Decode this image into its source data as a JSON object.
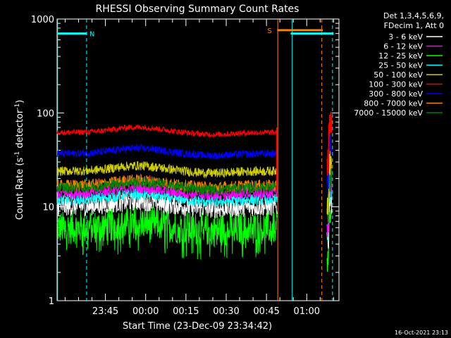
{
  "chart_data": {
    "type": "line",
    "title": "RHESSI Observing Summary Count Rates",
    "xlabel": "Start Time (23-Dec-09 23:34:42)",
    "ylabel": "Count Rate (s",
    "ylabel_sup": "-1",
    "ylabel_tail": " detector",
    "ylabel_close": ")",
    "yscale": "log",
    "ylim": [
      1,
      1000
    ],
    "xlim_minutes": [
      -8,
      97
    ],
    "x_ticks": [
      {
        "label": "23:45",
        "minute": 10
      },
      {
        "label": "00:00",
        "minute": 25
      },
      {
        "label": "00:15",
        "minute": 40
      },
      {
        "label": "00:30",
        "minute": 55
      },
      {
        "label": "00:45",
        "minute": 70
      },
      {
        "label": "01:00",
        "minute": 85
      }
    ],
    "y_ticks": [
      {
        "label": "1",
        "value": 1
      },
      {
        "label": "10",
        "value": 10
      },
      {
        "label": "100",
        "value": 100
      },
      {
        "label": "1000",
        "value": 1000
      }
    ],
    "legend": {
      "header1": "Det 1,3,4,5,6,9,",
      "header2": "FDecim 1, Att 0",
      "placement": "right"
    },
    "series": [
      {
        "name": "3 - 6 keV",
        "color": "#ffffff",
        "level": 10,
        "jitter": 0.1
      },
      {
        "name": "6 - 12 keV",
        "color": "#ff00ff",
        "level": 14,
        "jitter": 0.06
      },
      {
        "name": "12 - 25 keV",
        "color": "#00ff00",
        "level": 6,
        "jitter": 0.18
      },
      {
        "name": "25 - 50 keV",
        "color": "#00ffff",
        "level": 12,
        "jitter": 0.06
      },
      {
        "name": "50 - 100 keV",
        "color": "#d0d000",
        "level": 24,
        "jitter": 0.05
      },
      {
        "name": "100 - 300 keV",
        "color": "#ff0000",
        "level": 62,
        "jitter": 0.03
      },
      {
        "name": "300 - 800 keV",
        "color": "#0000ff",
        "level": 37,
        "jitter": 0.04
      },
      {
        "name": "800 - 7000 keV",
        "color": "#ff8000",
        "level": 17,
        "jitter": 0.06
      },
      {
        "name": "7000 - 15000 keV",
        "color": "#008000",
        "level": 16,
        "jitter": 0.06
      }
    ],
    "flags": [
      {
        "label": "N",
        "color": "#00ffff",
        "start_min": -8,
        "end_min": 3,
        "value": 700
      },
      {
        "label": "S",
        "color": "#ff8000",
        "start_min": 74,
        "end_min": 91,
        "value": 760
      },
      {
        "label": "",
        "color": "#00ffff",
        "start_min": 79,
        "end_min": 95,
        "value": 700
      }
    ],
    "footer_date": "16-Oct-2021 23:13"
  }
}
